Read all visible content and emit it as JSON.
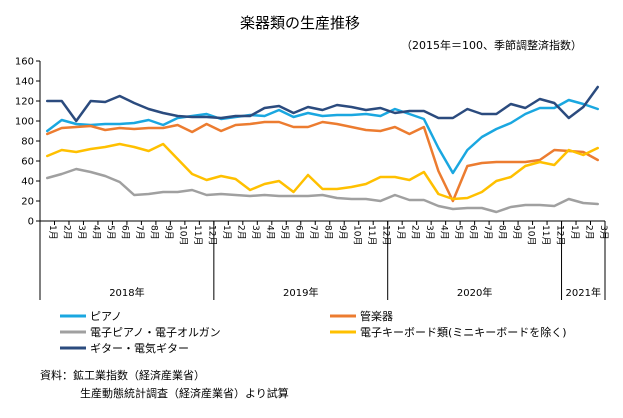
{
  "chart_data": {
    "type": "line",
    "title": "楽器類の生産推移",
    "subtitle": "（2015年＝100、季節調整済指数）",
    "ylim": [
      0,
      160
    ],
    "yticks": [
      "0",
      "20",
      "40",
      "60",
      "80",
      "100",
      "120",
      "140",
      "160"
    ],
    "grid": false,
    "legend_position": "bottom",
    "x": [
      "1月",
      "2月",
      "3月",
      "4月",
      "5月",
      "6月",
      "7月",
      "8月",
      "9月",
      "10月",
      "11月",
      "12月",
      "1月",
      "2月",
      "3月",
      "4月",
      "5月",
      "6月",
      "7月",
      "8月",
      "9月",
      "10月",
      "11月",
      "12月",
      "1月",
      "2月",
      "3月",
      "4月",
      "5月",
      "6月",
      "7月",
      "8月",
      "9月",
      "10月",
      "11月",
      "12月",
      "1月",
      "2月",
      "3月"
    ],
    "year_groups": [
      {
        "label": "2018年",
        "start": 0,
        "end": 11
      },
      {
        "label": "2019年",
        "start": 12,
        "end": 23
      },
      {
        "label": "2020年",
        "start": 24,
        "end": 35
      },
      {
        "label": "2021年",
        "start": 36,
        "end": 38
      }
    ],
    "series": [
      {
        "name": "ピアノ",
        "color": "#1aa7e0",
        "values": [
          90,
          101,
          97,
          96,
          97,
          97,
          98,
          101,
          96,
          103,
          105,
          107,
          102,
          104,
          106,
          105,
          111,
          104,
          108,
          105,
          106,
          106,
          107,
          105,
          112,
          107,
          102,
          73,
          48,
          71,
          84,
          92,
          98,
          107,
          113,
          113,
          121,
          117,
          112
        ]
      },
      {
        "name": "管楽器",
        "color": "#ec7c30",
        "values": [
          87,
          93,
          94,
          95,
          91,
          93,
          92,
          93,
          93,
          96,
          89,
          97,
          90,
          96,
          97,
          99,
          99,
          94,
          94,
          99,
          97,
          94,
          91,
          90,
          94,
          87,
          94,
          50,
          20,
          55,
          58,
          59,
          59,
          59,
          61,
          71,
          70,
          69,
          61
        ]
      },
      {
        "name": "電子ピアノ・電子オルガン",
        "color": "#a0a0a0",
        "values": [
          43,
          47,
          52,
          49,
          45,
          39,
          26,
          27,
          29,
          29,
          31,
          26,
          27,
          26,
          25,
          26,
          25,
          25,
          25,
          26,
          23,
          22,
          22,
          20,
          26,
          21,
          21,
          15,
          12,
          13,
          13,
          9,
          14,
          16,
          16,
          15,
          22,
          18,
          17
        ]
      },
      {
        "name": "電子キーボード類(ミニキーボードを除く)",
        "color": "#ffc000",
        "values": [
          65,
          71,
          69,
          72,
          74,
          77,
          74,
          70,
          77,
          62,
          47,
          41,
          45,
          42,
          31,
          37,
          40,
          29,
          46,
          32,
          32,
          34,
          37,
          44,
          44,
          41,
          49,
          27,
          22,
          23,
          29,
          40,
          44,
          55,
          59,
          56,
          71,
          66,
          73
        ]
      },
      {
        "name": "ギター・電気ギター",
        "color": "#2b4b7e",
        "values": [
          120,
          120,
          100,
          120,
          119,
          125,
          118,
          112,
          108,
          105,
          104,
          104,
          103,
          105,
          105,
          113,
          115,
          108,
          114,
          111,
          116,
          114,
          111,
          113,
          108,
          110,
          110,
          103,
          103,
          112,
          107,
          107,
          117,
          113,
          122,
          118,
          103,
          114,
          134
        ]
      }
    ]
  },
  "source_lines": [
    "資料：鉱工業指数（経済産業省）",
    "生産動態統計調査（経済産業省）より試算"
  ]
}
